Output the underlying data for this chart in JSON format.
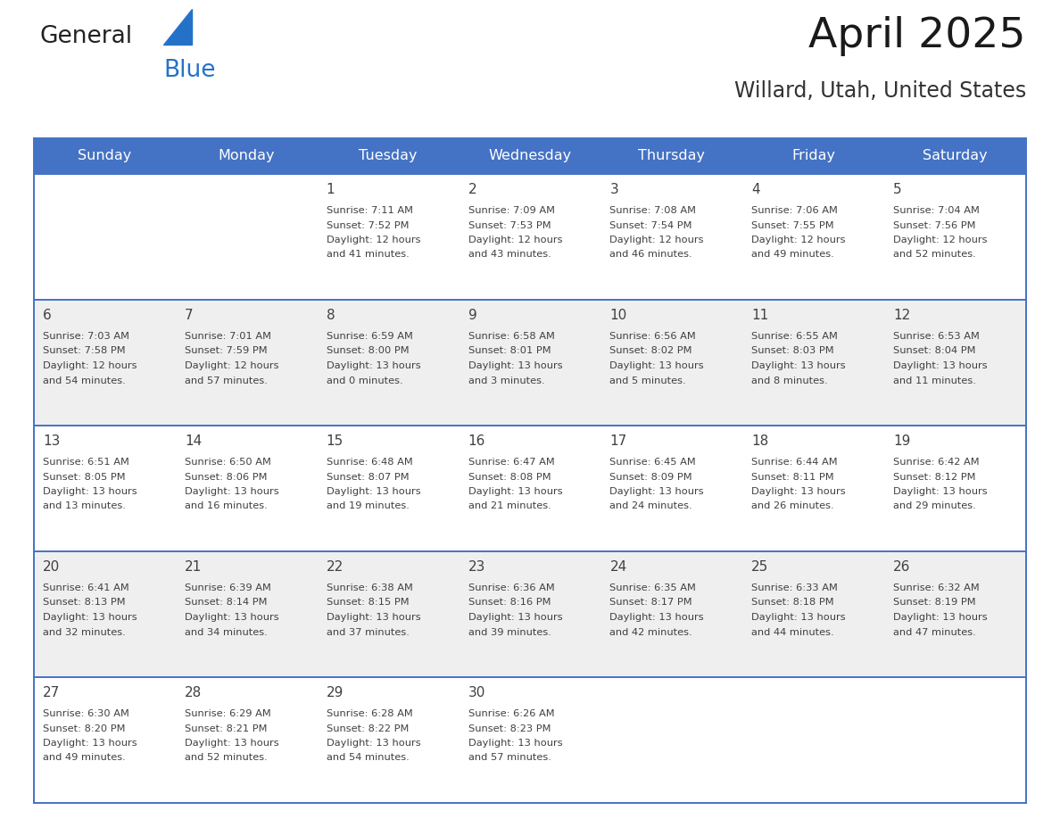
{
  "title": "April 2025",
  "subtitle": "Willard, Utah, United States",
  "header_bg": "#4472C4",
  "header_text": "#FFFFFF",
  "row_bg_even": "#FFFFFF",
  "row_bg_odd": "#EFEFEF",
  "divider_color": "#4472C4",
  "text_color": "#404040",
  "days_of_week": [
    "Sunday",
    "Monday",
    "Tuesday",
    "Wednesday",
    "Thursday",
    "Friday",
    "Saturday"
  ],
  "weeks": [
    [
      {
        "day": "",
        "sunrise": "",
        "sunset": "",
        "daylight": ""
      },
      {
        "day": "",
        "sunrise": "",
        "sunset": "",
        "daylight": ""
      },
      {
        "day": "1",
        "sunrise": "7:11 AM",
        "sunset": "7:52 PM",
        "daylight": "12 hours and 41 minutes."
      },
      {
        "day": "2",
        "sunrise": "7:09 AM",
        "sunset": "7:53 PM",
        "daylight": "12 hours and 43 minutes."
      },
      {
        "day": "3",
        "sunrise": "7:08 AM",
        "sunset": "7:54 PM",
        "daylight": "12 hours and 46 minutes."
      },
      {
        "day": "4",
        "sunrise": "7:06 AM",
        "sunset": "7:55 PM",
        "daylight": "12 hours and 49 minutes."
      },
      {
        "day": "5",
        "sunrise": "7:04 AM",
        "sunset": "7:56 PM",
        "daylight": "12 hours and 52 minutes."
      }
    ],
    [
      {
        "day": "6",
        "sunrise": "7:03 AM",
        "sunset": "7:58 PM",
        "daylight": "12 hours and 54 minutes."
      },
      {
        "day": "7",
        "sunrise": "7:01 AM",
        "sunset": "7:59 PM",
        "daylight": "12 hours and 57 minutes."
      },
      {
        "day": "8",
        "sunrise": "6:59 AM",
        "sunset": "8:00 PM",
        "daylight": "13 hours and 0 minutes."
      },
      {
        "day": "9",
        "sunrise": "6:58 AM",
        "sunset": "8:01 PM",
        "daylight": "13 hours and 3 minutes."
      },
      {
        "day": "10",
        "sunrise": "6:56 AM",
        "sunset": "8:02 PM",
        "daylight": "13 hours and 5 minutes."
      },
      {
        "day": "11",
        "sunrise": "6:55 AM",
        "sunset": "8:03 PM",
        "daylight": "13 hours and 8 minutes."
      },
      {
        "day": "12",
        "sunrise": "6:53 AM",
        "sunset": "8:04 PM",
        "daylight": "13 hours and 11 minutes."
      }
    ],
    [
      {
        "day": "13",
        "sunrise": "6:51 AM",
        "sunset": "8:05 PM",
        "daylight": "13 hours and 13 minutes."
      },
      {
        "day": "14",
        "sunrise": "6:50 AM",
        "sunset": "8:06 PM",
        "daylight": "13 hours and 16 minutes."
      },
      {
        "day": "15",
        "sunrise": "6:48 AM",
        "sunset": "8:07 PM",
        "daylight": "13 hours and 19 minutes."
      },
      {
        "day": "16",
        "sunrise": "6:47 AM",
        "sunset": "8:08 PM",
        "daylight": "13 hours and 21 minutes."
      },
      {
        "day": "17",
        "sunrise": "6:45 AM",
        "sunset": "8:09 PM",
        "daylight": "13 hours and 24 minutes."
      },
      {
        "day": "18",
        "sunrise": "6:44 AM",
        "sunset": "8:11 PM",
        "daylight": "13 hours and 26 minutes."
      },
      {
        "day": "19",
        "sunrise": "6:42 AM",
        "sunset": "8:12 PM",
        "daylight": "13 hours and 29 minutes."
      }
    ],
    [
      {
        "day": "20",
        "sunrise": "6:41 AM",
        "sunset": "8:13 PM",
        "daylight": "13 hours and 32 minutes."
      },
      {
        "day": "21",
        "sunrise": "6:39 AM",
        "sunset": "8:14 PM",
        "daylight": "13 hours and 34 minutes."
      },
      {
        "day": "22",
        "sunrise": "6:38 AM",
        "sunset": "8:15 PM",
        "daylight": "13 hours and 37 minutes."
      },
      {
        "day": "23",
        "sunrise": "6:36 AM",
        "sunset": "8:16 PM",
        "daylight": "13 hours and 39 minutes."
      },
      {
        "day": "24",
        "sunrise": "6:35 AM",
        "sunset": "8:17 PM",
        "daylight": "13 hours and 42 minutes."
      },
      {
        "day": "25",
        "sunrise": "6:33 AM",
        "sunset": "8:18 PM",
        "daylight": "13 hours and 44 minutes."
      },
      {
        "day": "26",
        "sunrise": "6:32 AM",
        "sunset": "8:19 PM",
        "daylight": "13 hours and 47 minutes."
      }
    ],
    [
      {
        "day": "27",
        "sunrise": "6:30 AM",
        "sunset": "8:20 PM",
        "daylight": "13 hours and 49 minutes."
      },
      {
        "day": "28",
        "sunrise": "6:29 AM",
        "sunset": "8:21 PM",
        "daylight": "13 hours and 52 minutes."
      },
      {
        "day": "29",
        "sunrise": "6:28 AM",
        "sunset": "8:22 PM",
        "daylight": "13 hours and 54 minutes."
      },
      {
        "day": "30",
        "sunrise": "6:26 AM",
        "sunset": "8:23 PM",
        "daylight": "13 hours and 57 minutes."
      },
      {
        "day": "",
        "sunrise": "",
        "sunset": "",
        "daylight": ""
      },
      {
        "day": "",
        "sunrise": "",
        "sunset": "",
        "daylight": ""
      },
      {
        "day": "",
        "sunrise": "",
        "sunset": "",
        "daylight": ""
      }
    ]
  ],
  "logo_general_color": "#222222",
  "logo_blue_color": "#2472C8",
  "logo_triangle_color": "#2472C8",
  "header_font_size": 11.5,
  "day_num_font_size": 11.0,
  "cell_text_font_size": 8.2,
  "title_font_size": 34,
  "subtitle_font_size": 17
}
